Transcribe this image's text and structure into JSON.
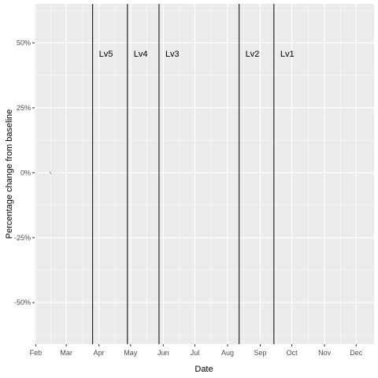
{
  "chart_data": {
    "type": "line",
    "title": "",
    "xlabel": "Date",
    "ylabel": "Percentage change from baseline",
    "x_ticks": [
      "Feb",
      "Mar",
      "Apr",
      "May",
      "Jun",
      "Jul",
      "Aug",
      "Sep",
      "Oct",
      "Nov",
      "Dec"
    ],
    "x_tick_dates": [
      "2020-02-01",
      "2020-03-01",
      "2020-04-01",
      "2020-05-01",
      "2020-06-01",
      "2020-07-01",
      "2020-08-01",
      "2020-09-01",
      "2020-10-01",
      "2020-11-01",
      "2020-12-01"
    ],
    "xlim": [
      "2020-01-31",
      "2020-12-18"
    ],
    "y_ticks": [
      -50,
      -25,
      0,
      25,
      50
    ],
    "y_tick_labels": [
      "-50%",
      "-25%",
      "0%",
      "25%",
      "50%"
    ],
    "ylim": [
      -66,
      65
    ],
    "grid": true,
    "series": [
      {
        "color": "#f8766d",
        "points": [
          {
            "x": "2020-02-15",
            "y": 0
          }
        ]
      }
    ],
    "vlines": [
      {
        "date": "2020-03-26",
        "label": "Lv5"
      },
      {
        "date": "2020-04-28",
        "label": "Lv4"
      },
      {
        "date": "2020-05-28",
        "label": "Lv3"
      },
      {
        "date": "2020-08-12",
        "label": "Lv2"
      },
      {
        "date": "2020-09-14",
        "label": "Lv1"
      }
    ],
    "colors": {
      "panel": "#ebebeb",
      "grid": "#ffffff",
      "vline": "#000000",
      "series": "#f8766d"
    }
  }
}
